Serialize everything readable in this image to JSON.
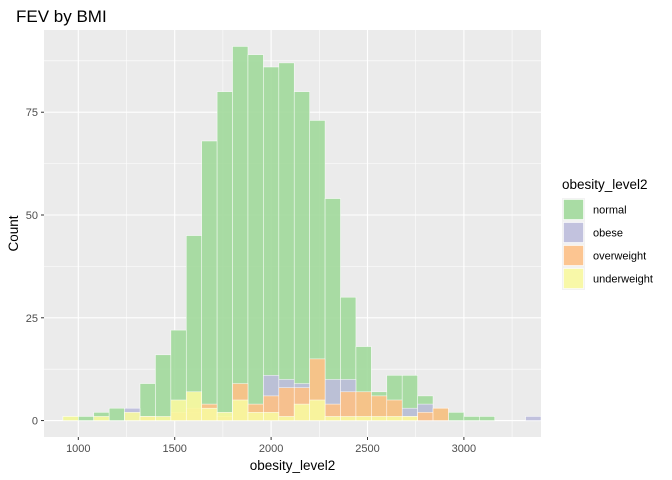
{
  "chart_data": {
    "type": "bar",
    "stacking": "overlap",
    "title": "FEV by BMI",
    "xlabel": "obesity_level2",
    "ylabel": "Count",
    "xlim": [
      822,
      3400
    ],
    "ylim": [
      -4,
      95
    ],
    "x_ticks": [
      1000,
      1500,
      2000,
      2500,
      3000
    ],
    "y_ticks": [
      0,
      25,
      50,
      75
    ],
    "grid": true,
    "legend": {
      "title": "obesity_level2",
      "position": "right"
    },
    "bin_width": 80,
    "series": [
      {
        "name": "normal",
        "color": "#a1d99b",
        "x": [
          960,
          1040,
          1120,
          1200,
          1280,
          1360,
          1440,
          1520,
          1600,
          1680,
          1760,
          1840,
          1920,
          2000,
          2080,
          2160,
          2240,
          2320,
          2400,
          2480,
          2560,
          2640,
          2720,
          2800,
          2880,
          2960,
          3040,
          3120
        ],
        "values": [
          1,
          1,
          2,
          3,
          2,
          9,
          16,
          22,
          45,
          68,
          80,
          91,
          89,
          86,
          87,
          80,
          73,
          54,
          30,
          18,
          7,
          11,
          11,
          6,
          3,
          2,
          1,
          1
        ]
      },
      {
        "name": "obese",
        "color": "#bcbddc",
        "x": [
          1280,
          1600,
          2000,
          2080,
          2160,
          2320,
          2400,
          2720,
          2800,
          3360
        ],
        "values": [
          3,
          2,
          11,
          10,
          9,
          10,
          10,
          3,
          4,
          1
        ]
      },
      {
        "name": "overweight",
        "color": "#fdc086",
        "x": [
          1360,
          1520,
          1600,
          1680,
          1760,
          1840,
          1920,
          2000,
          2080,
          2160,
          2240,
          2320,
          2400,
          2480,
          2560,
          2640,
          2720,
          2800,
          2880
        ],
        "values": [
          1,
          2,
          3,
          4,
          1,
          9,
          4,
          6,
          8,
          8,
          15,
          4,
          7,
          7,
          6,
          5,
          1,
          2,
          3
        ]
      },
      {
        "name": "underweight",
        "color": "#f8f8a0",
        "x": [
          960,
          1120,
          1280,
          1360,
          1440,
          1520,
          1600,
          1680,
          1760,
          1840,
          1920,
          2000,
          2080,
          2160,
          2240,
          2320,
          2400,
          2480,
          2560,
          2640,
          2720
        ],
        "values": [
          1,
          1,
          2,
          1,
          1,
          5,
          7,
          3,
          2,
          5,
          2,
          2,
          1,
          4,
          5,
          1,
          1,
          1,
          1,
          1,
          1
        ]
      }
    ]
  }
}
